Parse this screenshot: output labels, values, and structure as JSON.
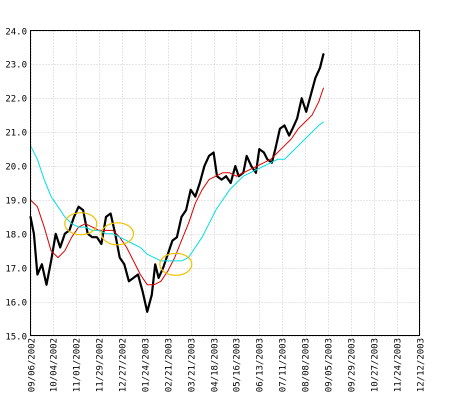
{
  "chart_data": {
    "type": "line",
    "title": "",
    "xlabel": "",
    "ylabel": "",
    "ylim": [
      15.0,
      24.0
    ],
    "y_ticks": [
      "15.0",
      "16.0",
      "17.0",
      "18.0",
      "19.0",
      "20.0",
      "21.0",
      "22.0",
      "23.0",
      "24.0"
    ],
    "grid": true,
    "legend": "none",
    "x_ticks": [
      "09/06/2002",
      "10/04/2002",
      "11/01/2002",
      "11/29/2002",
      "12/27/2002",
      "01/24/2003",
      "02/21/2003",
      "03/21/2003",
      "04/18/2003",
      "05/16/2003",
      "06/13/2003",
      "07/11/2003",
      "08/08/2003",
      "09/05/2003",
      "09/29/2003",
      "10/27/2003",
      "11/24/2003",
      "12/12/2003"
    ],
    "series": [
      {
        "color": "#000000",
        "values": [
          [
            0,
            18.5
          ],
          [
            0.15,
            18.0
          ],
          [
            0.3,
            16.8
          ],
          [
            0.5,
            17.1
          ],
          [
            0.7,
            16.5
          ],
          [
            0.9,
            17.2
          ],
          [
            1.1,
            18.0
          ],
          [
            1.3,
            17.6
          ],
          [
            1.5,
            18.0
          ],
          [
            1.7,
            18.1
          ],
          [
            1.9,
            18.5
          ],
          [
            2.1,
            18.8
          ],
          [
            2.3,
            18.7
          ],
          [
            2.5,
            18.0
          ],
          [
            2.7,
            17.9
          ],
          [
            2.9,
            17.9
          ],
          [
            3.1,
            17.7
          ],
          [
            3.3,
            18.5
          ],
          [
            3.5,
            18.6
          ],
          [
            3.7,
            18.0
          ],
          [
            3.9,
            17.3
          ],
          [
            4.1,
            17.1
          ],
          [
            4.3,
            16.6
          ],
          [
            4.5,
            16.7
          ],
          [
            4.7,
            16.8
          ],
          [
            4.9,
            16.3
          ],
          [
            5.1,
            15.7
          ],
          [
            5.3,
            16.2
          ],
          [
            5.45,
            17.1
          ],
          [
            5.6,
            16.7
          ],
          [
            5.8,
            17.0
          ],
          [
            6.0,
            17.4
          ],
          [
            6.2,
            17.8
          ],
          [
            6.4,
            17.9
          ],
          [
            6.6,
            18.5
          ],
          [
            6.8,
            18.7
          ],
          [
            7.0,
            19.3
          ],
          [
            7.2,
            19.1
          ],
          [
            7.4,
            19.5
          ],
          [
            7.6,
            20.0
          ],
          [
            7.8,
            20.3
          ],
          [
            8.0,
            20.4
          ],
          [
            8.15,
            19.7
          ],
          [
            8.35,
            19.6
          ],
          [
            8.55,
            19.7
          ],
          [
            8.75,
            19.5
          ],
          [
            8.95,
            20.0
          ],
          [
            9.1,
            19.7
          ],
          [
            9.3,
            19.8
          ],
          [
            9.45,
            20.3
          ],
          [
            9.65,
            20.0
          ],
          [
            9.85,
            19.8
          ],
          [
            10.0,
            20.5
          ],
          [
            10.2,
            20.4
          ],
          [
            10.35,
            20.2
          ],
          [
            10.55,
            20.1
          ],
          [
            10.7,
            20.5
          ],
          [
            10.9,
            21.1
          ],
          [
            11.1,
            21.2
          ],
          [
            11.3,
            20.9
          ],
          [
            11.45,
            21.1
          ],
          [
            11.65,
            21.4
          ],
          [
            11.85,
            22.0
          ],
          [
            12.05,
            21.6
          ],
          [
            12.25,
            22.1
          ],
          [
            12.45,
            22.6
          ],
          [
            12.65,
            22.9
          ],
          [
            12.8,
            23.3
          ]
        ]
      },
      {
        "color": "#dd0000",
        "values": [
          [
            0,
            19.0
          ],
          [
            0.3,
            18.8
          ],
          [
            0.6,
            18.2
          ],
          [
            0.9,
            17.5
          ],
          [
            1.2,
            17.3
          ],
          [
            1.5,
            17.5
          ],
          [
            1.8,
            17.9
          ],
          [
            2.1,
            18.2
          ],
          [
            2.4,
            18.3
          ],
          [
            2.7,
            18.2
          ],
          [
            3.0,
            18.1
          ],
          [
            3.3,
            18.1
          ],
          [
            3.6,
            18.1
          ],
          [
            3.9,
            17.9
          ],
          [
            4.2,
            17.6
          ],
          [
            4.5,
            17.2
          ],
          [
            4.8,
            16.8
          ],
          [
            5.1,
            16.5
          ],
          [
            5.4,
            16.5
          ],
          [
            5.7,
            16.6
          ],
          [
            6.0,
            16.9
          ],
          [
            6.3,
            17.3
          ],
          [
            6.6,
            17.8
          ],
          [
            6.9,
            18.3
          ],
          [
            7.2,
            18.9
          ],
          [
            7.5,
            19.3
          ],
          [
            7.8,
            19.6
          ],
          [
            8.1,
            19.7
          ],
          [
            8.4,
            19.8
          ],
          [
            8.7,
            19.8
          ],
          [
            9.0,
            19.7
          ],
          [
            9.3,
            19.8
          ],
          [
            9.6,
            19.9
          ],
          [
            9.9,
            20.0
          ],
          [
            10.2,
            20.1
          ],
          [
            10.5,
            20.2
          ],
          [
            10.8,
            20.4
          ],
          [
            11.1,
            20.6
          ],
          [
            11.4,
            20.8
          ],
          [
            11.7,
            21.1
          ],
          [
            12.0,
            21.3
          ],
          [
            12.3,
            21.5
          ],
          [
            12.6,
            21.9
          ],
          [
            12.8,
            22.3
          ]
        ]
      },
      {
        "color": "#00e0e0",
        "values": [
          [
            0,
            20.6
          ],
          [
            0.3,
            20.2
          ],
          [
            0.6,
            19.6
          ],
          [
            0.9,
            19.1
          ],
          [
            1.2,
            18.8
          ],
          [
            1.5,
            18.5
          ],
          [
            1.8,
            18.3
          ],
          [
            2.1,
            18.2
          ],
          [
            2.4,
            18.2
          ],
          [
            2.7,
            18.1
          ],
          [
            3.0,
            18.1
          ],
          [
            3.3,
            18.0
          ],
          [
            3.6,
            18.0
          ],
          [
            3.9,
            17.9
          ],
          [
            4.2,
            17.8
          ],
          [
            4.5,
            17.7
          ],
          [
            4.8,
            17.6
          ],
          [
            5.1,
            17.4
          ],
          [
            5.4,
            17.3
          ],
          [
            5.7,
            17.2
          ],
          [
            6.0,
            17.2
          ],
          [
            6.3,
            17.2
          ],
          [
            6.6,
            17.2
          ],
          [
            6.9,
            17.3
          ],
          [
            7.2,
            17.6
          ],
          [
            7.5,
            17.9
          ],
          [
            7.8,
            18.3
          ],
          [
            8.1,
            18.7
          ],
          [
            8.4,
            19.0
          ],
          [
            8.7,
            19.3
          ],
          [
            9.0,
            19.5
          ],
          [
            9.3,
            19.7
          ],
          [
            9.6,
            19.8
          ],
          [
            9.9,
            19.9
          ],
          [
            10.2,
            20.0
          ],
          [
            10.5,
            20.1
          ],
          [
            10.8,
            20.2
          ],
          [
            11.1,
            20.2
          ],
          [
            11.4,
            20.4
          ],
          [
            11.7,
            20.6
          ],
          [
            12.0,
            20.8
          ],
          [
            12.3,
            21.0
          ],
          [
            12.6,
            21.2
          ],
          [
            12.8,
            21.3
          ]
        ]
      }
    ],
    "annotations": [
      {
        "shape": "ellipse",
        "color": "#f0c000",
        "x": 2.2,
        "y": 18.3
      },
      {
        "shape": "ellipse",
        "color": "#f0c000",
        "x": 3.8,
        "y": 18.0
      },
      {
        "shape": "ellipse",
        "color": "#f0c000",
        "x": 6.35,
        "y": 17.1
      }
    ]
  }
}
